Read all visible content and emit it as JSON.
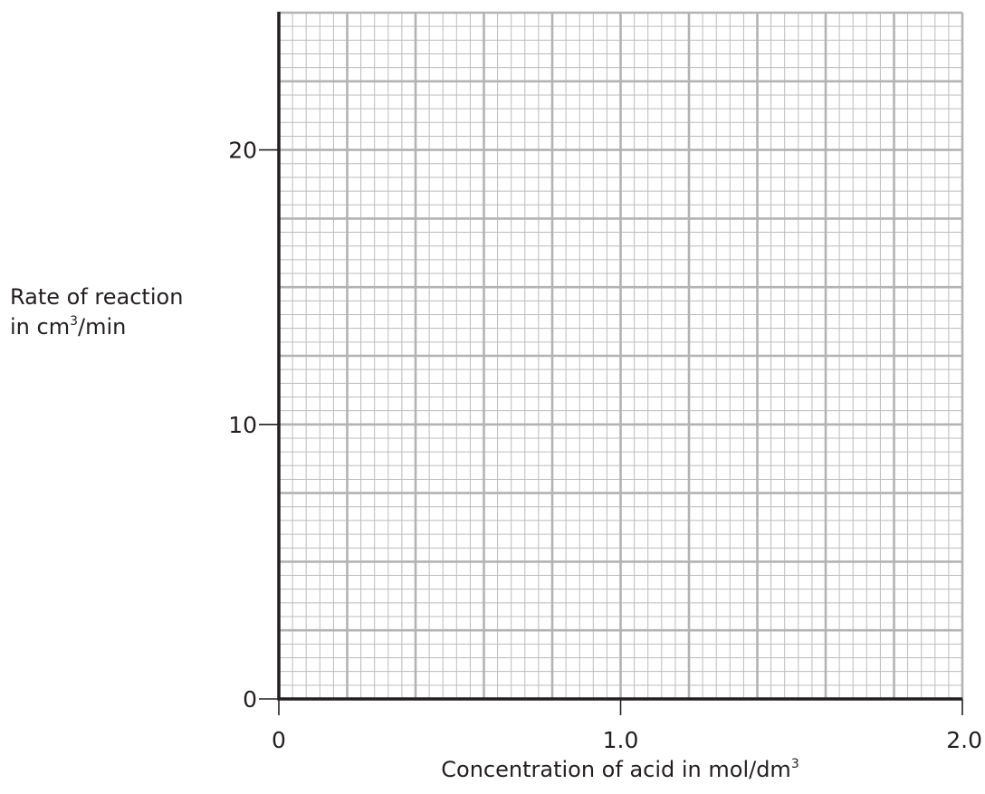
{
  "chart_data": {
    "type": "scatter",
    "title": "",
    "xlabel": {
      "text": "Concentration of acid in mol/dm",
      "superscript": "3"
    },
    "ylabel": {
      "line1": "Rate of reaction",
      "line2_prefix": "in cm",
      "line2_superscript": "3",
      "line2_suffix": "/min"
    },
    "xlim": [
      0,
      2.0
    ],
    "ylim": [
      0,
      25
    ],
    "x_ticks": [
      {
        "value": 0,
        "label": "0"
      },
      {
        "value": 1.0,
        "label": "1.0"
      },
      {
        "value": 2.0,
        "label": "2.0"
      }
    ],
    "y_ticks": [
      {
        "value": 0,
        "label": "0"
      },
      {
        "value": 10,
        "label": "10"
      },
      {
        "value": 20,
        "label": "20"
      }
    ],
    "grid": true,
    "grid_major_x": 0.2,
    "grid_major_y": 2.5,
    "grid_minor_x": 0.04,
    "grid_minor_y": 0.5,
    "series": []
  },
  "colors": {
    "axis": "#231f20",
    "grid_major": "#b3b3b3",
    "grid_minor": "#bcbcbc"
  }
}
